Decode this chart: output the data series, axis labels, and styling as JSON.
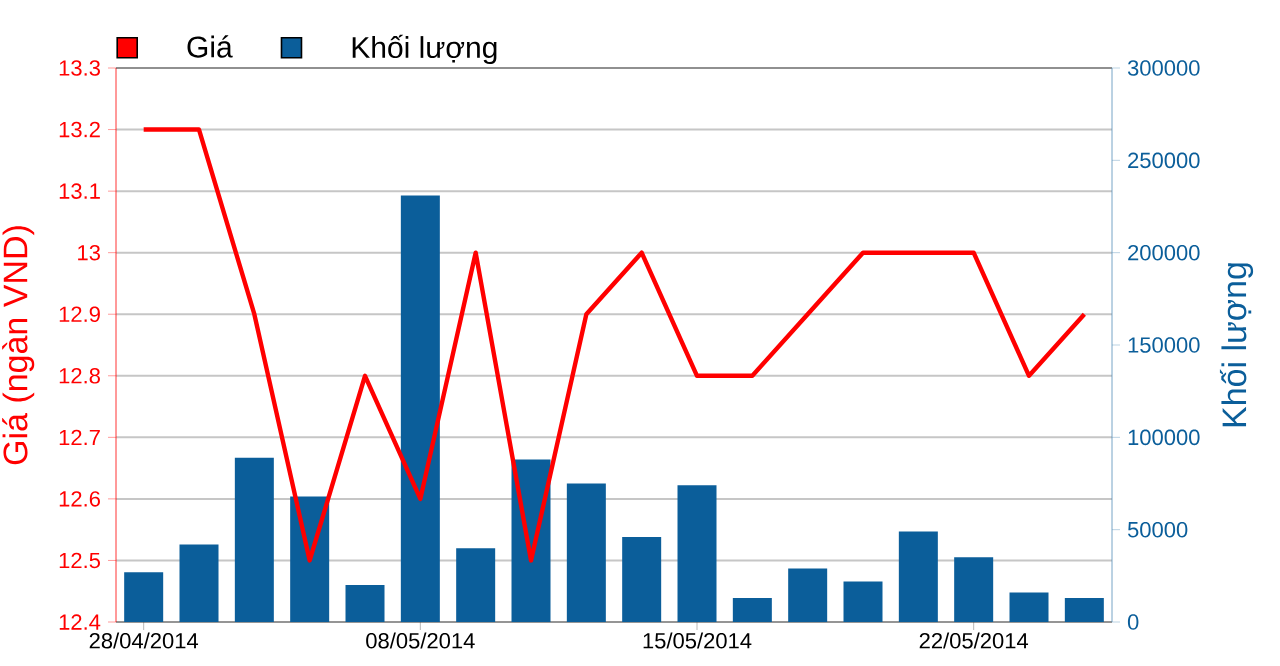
{
  "chart_data": {
    "type": "bar",
    "categories": [
      "28/04/2014",
      null,
      null,
      null,
      null,
      "08/05/2014",
      null,
      null,
      null,
      null,
      "15/05/2014",
      null,
      null,
      null,
      null,
      "22/05/2014",
      null,
      null
    ],
    "series": [
      {
        "name": "Giá",
        "type": "line",
        "color": "#ff0000",
        "values": [
          13.2,
          13.2,
          12.9,
          12.5,
          12.8,
          12.6,
          13.0,
          12.5,
          12.9,
          13.0,
          12.8,
          12.8,
          12.9,
          13.0,
          13.0,
          13.0,
          12.8,
          12.9
        ]
      },
      {
        "name": "Khối lượng",
        "axis": "y2",
        "color": "#0b5e9a",
        "values": [
          27000,
          42000,
          89000,
          68000,
          20000,
          231000,
          40000,
          88000,
          75000,
          46000,
          74000,
          13000,
          29000,
          22000,
          49000,
          35000,
          16000,
          13000
        ]
      }
    ],
    "ylabel": "Giá (ngàn VND)",
    "y2label": "Khối lượng",
    "ylim": [
      12.4,
      13.3
    ],
    "yticks": [
      12.4,
      12.5,
      12.6,
      12.7,
      12.8,
      12.9,
      13,
      13.1,
      13.2,
      13.3
    ],
    "y2lim": [
      0,
      300000
    ],
    "y2ticks": [
      0,
      50000,
      100000,
      150000,
      200000,
      250000,
      300000
    ],
    "grid": "y",
    "legend": "top left"
  }
}
